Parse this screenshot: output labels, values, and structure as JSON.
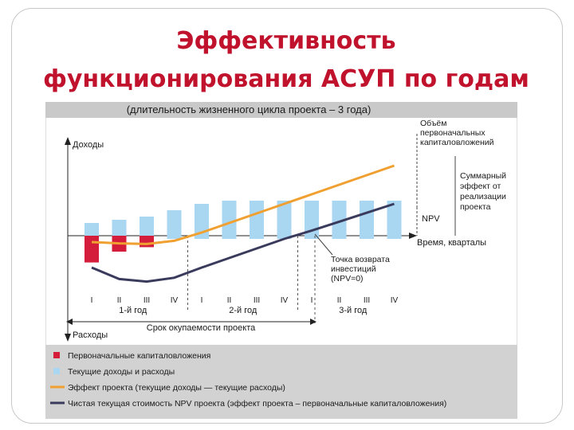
{
  "slide": {
    "title_line1": "Эффективность",
    "title_line2": "функционирования АСУП по годам"
  },
  "chart_data": {
    "type": "bar+line",
    "title": "(длительность жизненного цикла проекта – 3 года)",
    "y_axis_top_label": "Доходы",
    "y_axis_bottom_label": "Расходы",
    "x_axis_label": "Время, кварталы",
    "quarters": [
      "I",
      "II",
      "III",
      "IV",
      "I",
      "II",
      "III",
      "IV",
      "I",
      "II",
      "III",
      "IV"
    ],
    "years": [
      "1-й год",
      "2-й год",
      "3-й год"
    ],
    "payback_label": "Срок окупаемости проекта",
    "initial_investment": [
      -0.42,
      -0.25,
      -0.18,
      0,
      0,
      0,
      0,
      0,
      0,
      0,
      0,
      0
    ],
    "current_income_expense": [
      [
        -0.15,
        0.2
      ],
      [
        -0.15,
        0.25
      ],
      [
        -0.1,
        0.3
      ],
      [
        -0.05,
        0.4
      ],
      [
        -0.05,
        0.5
      ],
      [
        -0.05,
        0.55
      ],
      [
        -0.05,
        0.55
      ],
      [
        -0.05,
        0.55
      ],
      [
        -0.05,
        0.55
      ],
      [
        -0.05,
        0.55
      ],
      [
        -0.05,
        0.55
      ],
      [
        -0.05,
        0.55
      ]
    ],
    "project_effect": [
      -0.1,
      -0.12,
      -0.13,
      -0.08,
      0.05,
      0.2,
      0.35,
      0.5,
      0.65,
      0.8,
      0.95,
      1.1
    ],
    "npv": [
      -0.5,
      -0.68,
      -0.72,
      -0.66,
      -0.5,
      -0.35,
      -0.2,
      -0.05,
      0.08,
      0.22,
      0.36,
      0.5
    ],
    "annotations": {
      "initial_volume": [
        "Объём",
        "первоначальных",
        "капиталовложений"
      ],
      "total_effect": [
        "Суммарный",
        "эффект от",
        "реализации",
        "проекта"
      ],
      "npv": "NPV",
      "payback_point": [
        "Точка возврата",
        "инвестиций",
        "(NPV=0)"
      ]
    },
    "legend": [
      {
        "label": "Первоначальные капиталовложения",
        "color": "#d41d3a",
        "kind": "square"
      },
      {
        "label": "Текущие доходы и расходы",
        "color": "#a9d6f0",
        "kind": "square"
      },
      {
        "label": "Эффект проекта (текущие доходы — текущие расходы)",
        "color": "#f0a030",
        "kind": "line"
      },
      {
        "label": "Чистая текущая стоимость NPV проекта (эффект проекта – первоначальные капиталовложения)",
        "color": "#3a3b5c",
        "kind": "line"
      }
    ],
    "colors": {
      "investment": "#d41d3a",
      "current": "#a9d6f0",
      "effect": "#f0a030",
      "npv": "#3a3b5c",
      "header_bg": "#c9c9c9",
      "legend_bg": "#d2d2d2"
    }
  }
}
